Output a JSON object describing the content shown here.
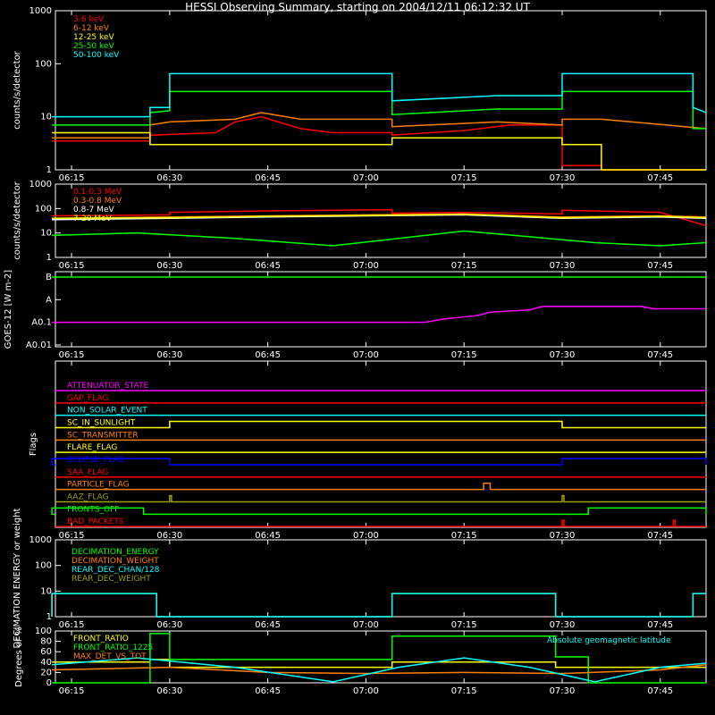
{
  "title": "HESSI Observing Summary, starting on 2004/12/11 06:12:32 UT",
  "colors": {
    "red": "#ff0000",
    "orange": "#ff8000",
    "yellow": "#ffff00",
    "green": "#00ff00",
    "cyan": "#00ffff",
    "magenta": "#ff00ff",
    "blue": "#0000ff",
    "olive": "#a0a000",
    "white": "#ffffff",
    "black": "#000000"
  },
  "x_axis": {
    "start": "06:12:32",
    "end": "07:52:00",
    "tick_labels": [
      "06:15",
      "06:30",
      "06:45",
      "07:00",
      "07:15",
      "07:30",
      "07:45"
    ],
    "tick_values": [
      "06:15",
      "06:30",
      "06:45",
      "07:00",
      "07:15",
      "07:30",
      "07:45"
    ]
  },
  "chart_data": [
    {
      "type": "line",
      "id": "panel1",
      "ylabel": "counts/s/detector",
      "scale": "log",
      "ylim": [
        1,
        1000
      ],
      "y_tick_labels": [
        "1",
        "10",
        "100",
        "1000"
      ],
      "legend": [
        "3-6 keV",
        "6-12 keV",
        "12-25 keV",
        "25-50 keV",
        "50-100 keV"
      ],
      "series": [
        {
          "name": "3-6 keV",
          "color": "red",
          "x": [
            "06:12",
            "06:27",
            "06:27",
            "06:37",
            "06:40",
            "06:44",
            "06:50",
            "06:55",
            "07:04",
            "07:04",
            "07:15",
            "07:22",
            "07:30",
            "07:30",
            "07:36",
            "07:36",
            "07:52"
          ],
          "y": [
            3.5,
            3.5,
            4.5,
            5,
            8,
            10,
            6,
            5,
            5,
            4.5,
            5.5,
            7,
            7,
            1.2,
            1.2,
            1,
            1
          ]
        },
        {
          "name": "6-12 keV",
          "color": "orange",
          "x": [
            "06:12",
            "06:27",
            "06:27",
            "06:30",
            "06:40",
            "06:44",
            "06:50",
            "07:04",
            "07:04",
            "07:20",
            "07:30",
            "07:30",
            "07:36",
            "07:52"
          ],
          "y": [
            4,
            4,
            7,
            8,
            9,
            12,
            9,
            9,
            6.5,
            8,
            7,
            9,
            9,
            6
          ]
        },
        {
          "name": "12-25 keV",
          "color": "yellow",
          "x": [
            "06:12",
            "06:27",
            "06:27",
            "07:04",
            "07:04",
            "07:30",
            "07:30",
            "07:36",
            "07:36",
            "07:52"
          ],
          "y": [
            5,
            5,
            3,
            3,
            4,
            4,
            3,
            3,
            1,
            1
          ]
        },
        {
          "name": "25-50 keV",
          "color": "green",
          "x": [
            "06:12",
            "06:27",
            "06:27",
            "06:30",
            "06:30",
            "07:04",
            "07:04",
            "07:20",
            "07:30",
            "07:30",
            "07:50",
            "07:50",
            "07:52"
          ],
          "y": [
            7,
            7,
            12,
            13,
            30,
            30,
            11,
            14,
            14,
            30,
            30,
            6,
            6
          ]
        },
        {
          "name": "50-100 keV",
          "color": "cyan",
          "x": [
            "06:12",
            "06:27",
            "06:27",
            "06:30",
            "06:30",
            "07:04",
            "07:04",
            "07:20",
            "07:30",
            "07:30",
            "07:50",
            "07:50",
            "07:52"
          ],
          "y": [
            10,
            10,
            15,
            15,
            65,
            65,
            20,
            25,
            25,
            65,
            65,
            15,
            12
          ]
        }
      ]
    },
    {
      "type": "line",
      "id": "panel2",
      "ylabel": "counts/s/detector",
      "scale": "log",
      "ylim": [
        1,
        1000
      ],
      "y_tick_labels": [
        "1",
        "10",
        "100",
        "1000"
      ],
      "legend": [
        "0.1-0.3 MeV",
        "0.3-0.8 MeV",
        "0.8-7 MeV",
        "7-20 MeV"
      ],
      "series": [
        {
          "name": "0.1-0.3 MeV",
          "color": "red",
          "x": [
            "06:12",
            "06:30",
            "06:30",
            "06:45",
            "07:04",
            "07:04",
            "07:15",
            "07:30",
            "07:30",
            "07:45",
            "07:52"
          ],
          "y": [
            50,
            55,
            70,
            80,
            90,
            65,
            70,
            60,
            85,
            70,
            20
          ]
        },
        {
          "name": "0.3-0.8 MeV",
          "color": "orange",
          "x": [
            "06:12",
            "06:30",
            "06:45",
            "07:00",
            "07:15",
            "07:30",
            "07:45",
            "07:52"
          ],
          "y": [
            40,
            45,
            50,
            55,
            60,
            45,
            50,
            45
          ]
        },
        {
          "name": "0.8-7 MeV",
          "color": "white",
          "x": [
            "06:12",
            "06:30",
            "06:45",
            "07:00",
            "07:15",
            "07:30",
            "07:45",
            "07:52"
          ],
          "y": [
            35,
            40,
            45,
            50,
            55,
            40,
            45,
            40
          ]
        },
        {
          "name": "7-20 MeV",
          "color": "yellow",
          "x": [
            "06:12",
            "06:30",
            "06:45",
            "07:00",
            "07:15",
            "07:30",
            "07:45",
            "07:52"
          ],
          "y": [
            40,
            42,
            48,
            52,
            58,
            42,
            48,
            42
          ]
        },
        {
          "name": "green",
          "color": "green",
          "x": [
            "06:12",
            "06:25",
            "06:40",
            "06:55",
            "07:05",
            "07:15",
            "07:25",
            "07:35",
            "07:45",
            "07:52"
          ],
          "y": [
            8,
            10,
            6,
            3,
            6,
            12,
            7,
            4,
            3,
            4
          ]
        }
      ]
    },
    {
      "type": "line",
      "id": "panel3",
      "ylabel": "GOES-12 [W m-2]",
      "y_tick_labels": [
        "A0.01",
        "A0.1",
        "A",
        "B"
      ],
      "series": [
        {
          "name": "green",
          "color": "green",
          "x": [
            "06:12",
            "07:52"
          ],
          "y": [
            "B",
            "B"
          ]
        },
        {
          "name": "magenta",
          "color": "magenta",
          "x": [
            "06:12",
            "07:09",
            "07:12",
            "07:17",
            "07:19",
            "07:25",
            "07:27",
            "07:42",
            "07:44",
            "07:52"
          ],
          "y": [
            "A0.1",
            "A0.1",
            "A0.1+",
            "A0.2",
            "A0.3",
            "A0.35",
            "A0.45",
            "A0.45",
            "A0.4",
            "A0.4"
          ]
        }
      ]
    },
    {
      "type": "line",
      "id": "panel4",
      "ylabel": "Flags",
      "flags": [
        {
          "name": "ATTENUATOR_STATE",
          "color": "magenta",
          "high": []
        },
        {
          "name": "GAP_FLAG",
          "color": "red",
          "high": []
        },
        {
          "name": "NON_SOLAR_EVENT",
          "color": "cyan",
          "high": []
        },
        {
          "name": "SC_IN_SUNLIGHT",
          "color": "yellow",
          "high": [
            [
              "06:30",
              "07:30"
            ]
          ]
        },
        {
          "name": "SC_TRANSMITTER",
          "color": "orange",
          "high": []
        },
        {
          "name": "FLARE_FLAG",
          "color": "yellow",
          "high": []
        },
        {
          "name": "ECLIPSE_FLAG",
          "color": "blue",
          "high": [
            [
              "06:12",
              "06:30"
            ],
            [
              "07:30",
              "07:52"
            ]
          ]
        },
        {
          "name": "SAA_FLAG",
          "color": "red",
          "high": []
        },
        {
          "name": "PARTICLE_FLAG",
          "color": "orange",
          "high": [
            [
              "07:18",
              "07:19"
            ]
          ]
        },
        {
          "name": "AAZ_FLAG",
          "color": "olive",
          "high": [
            [
              "06:30",
              "06:30"
            ],
            [
              "07:30",
              "07:30"
            ]
          ]
        },
        {
          "name": "FRONTS_OFF",
          "color": "green",
          "high": [
            [
              "06:12",
              "06:26"
            ],
            [
              "07:34",
              "07:52"
            ]
          ]
        },
        {
          "name": "BAD_PACKETS",
          "color": "red",
          "high": [
            [
              "07:30",
              "07:30"
            ],
            [
              "07:47",
              "07:47"
            ]
          ]
        }
      ]
    },
    {
      "type": "line",
      "id": "panel5",
      "ylabel": "DECIMATION ENERGY or weight",
      "scale": "log",
      "ylim": [
        1,
        1000
      ],
      "y_tick_labels": [
        "1",
        "10",
        "100",
        "1000"
      ],
      "legend": [
        "DECIMATION_ENERGY",
        "DECIMATION_WEIGHT",
        "REAR_DEC_CHAN/128",
        "REAR_DEC_WEIGHT"
      ],
      "series": [
        {
          "name": "DECIMATION_ENERGY",
          "color": "green",
          "x": [],
          "y": []
        },
        {
          "name": "DECIMATION_WEIGHT",
          "color": "orange",
          "x": [
            "06:12",
            "06:12",
            "06:28",
            "06:28",
            "07:04",
            "07:04",
            "07:29",
            "07:29",
            "07:50",
            "07:50",
            "07:52"
          ],
          "y": [
            1,
            8,
            8,
            1,
            1,
            8,
            8,
            1,
            1,
            8,
            8
          ]
        },
        {
          "name": "REAR_DEC_CHAN/128",
          "color": "cyan",
          "x": [
            "06:12",
            "06:12",
            "06:28",
            "06:28",
            "07:04",
            "07:04",
            "07:29",
            "07:29",
            "07:50",
            "07:50",
            "07:52"
          ],
          "y": [
            1,
            8,
            8,
            1,
            1,
            8,
            8,
            1,
            1,
            8,
            8
          ]
        },
        {
          "name": "REAR_DEC_WEIGHT",
          "color": "olive",
          "x": [],
          "y": []
        }
      ]
    },
    {
      "type": "line",
      "id": "panel6",
      "ylabel": "Degrees or %",
      "ylim": [
        0,
        100
      ],
      "y_tick_labels": [
        "0",
        "20",
        "40",
        "60",
        "80",
        "100"
      ],
      "legend": [
        "FRONT_RATIO",
        "FRONT_RATIO_1225",
        "MAX_DET_VS_TOT"
      ],
      "annotation": "Absolute geomagnetic latitude",
      "series": [
        {
          "name": "FRONT_RATIO",
          "color": "yellow",
          "x": [
            "06:12",
            "06:27",
            "06:27",
            "06:30",
            "06:30",
            "07:04",
            "07:04",
            "07:29",
            "07:29",
            "07:52"
          ],
          "y": [
            40,
            40,
            45,
            45,
            30,
            30,
            40,
            40,
            30,
            30
          ]
        },
        {
          "name": "FRONT_RATIO_1225",
          "color": "green",
          "x": [
            "06:12",
            "06:27",
            "06:27",
            "06:30",
            "06:30",
            "07:04",
            "07:04",
            "07:29",
            "07:29",
            "07:34",
            "07:34",
            "07:52"
          ],
          "y": [
            0,
            0,
            95,
            95,
            45,
            45,
            90,
            90,
            50,
            50,
            0,
            0
          ]
        },
        {
          "name": "MAX_DET_VS_TOT",
          "color": "orange",
          "x": [
            "06:12",
            "06:30",
            "06:45",
            "07:00",
            "07:15",
            "07:30",
            "07:45",
            "07:52"
          ],
          "y": [
            25,
            30,
            20,
            18,
            20,
            18,
            25,
            35
          ]
        },
        {
          "name": "Absolute geomagnetic latitude",
          "color": "cyan",
          "x": [
            "06:12",
            "06:25",
            "06:40",
            "06:55",
            "07:05",
            "07:15",
            "07:25",
            "07:35",
            "07:45",
            "07:52"
          ],
          "y": [
            35,
            48,
            30,
            2,
            30,
            48,
            30,
            2,
            30,
            38
          ]
        }
      ]
    }
  ]
}
